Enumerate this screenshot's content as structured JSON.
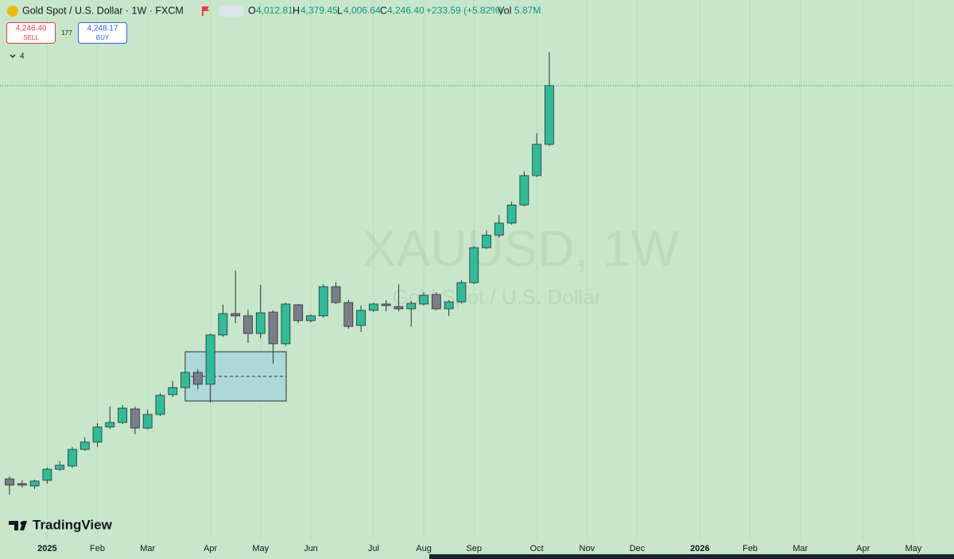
{
  "chart_data": {
    "type": "candlestick",
    "title": "Gold Spot / U.S. Dollar · 1W · FXCM",
    "ohlc": [
      {
        "key": "O",
        "value": "4,012.81"
      },
      {
        "key": "H",
        "value": "4,379.45"
      },
      {
        "key": "L",
        "value": "4,006.64"
      },
      {
        "key": "C",
        "value": "4,246.40"
      }
    ],
    "change": "+233.59 (+5.82%)",
    "volume": {
      "key": "Vol",
      "value": "5.87M"
    },
    "trade": {
      "sell": {
        "price": "4,246.40",
        "label": "SELL"
      },
      "spread": "177",
      "buy": {
        "price": "4,248.17",
        "label": "BUY"
      }
    },
    "indicators_count": "4",
    "watermark": [
      "XAUUSD, 1W",
      "Gold Spot / U.S. Dollar"
    ],
    "brand": "TradingView",
    "x": [
      0,
      1,
      2,
      3,
      4,
      5,
      6,
      7,
      8,
      9,
      10,
      11,
      12,
      13,
      14,
      15,
      16,
      17,
      18,
      19,
      20,
      21,
      22,
      23,
      24,
      25,
      26,
      27,
      28,
      29,
      30,
      31,
      32,
      33,
      34,
      35,
      36,
      37,
      38,
      39,
      40,
      41,
      42,
      43
    ],
    "open": [
      2683,
      2664,
      2655,
      2677,
      2721,
      2734,
      2800,
      2829,
      2889,
      2907,
      2961,
      2885,
      2939,
      3018,
      3046,
      3106,
      3059,
      3255,
      3340,
      3331,
      3261,
      3346,
      3220,
      3375,
      3312,
      3331,
      3447,
      3384,
      3293,
      3353,
      3378,
      3368,
      3359,
      3378,
      3416,
      3359,
      3387,
      3463,
      3602,
      3652,
      3700,
      3772,
      3889,
      4012.81
    ],
    "high": [
      2693,
      2677,
      2680,
      2728,
      2753,
      2810,
      2847,
      2904,
      2971,
      2977,
      2971,
      2958,
      3024,
      3072,
      3116,
      3119,
      3261,
      3375,
      3511,
      3356,
      3454,
      3353,
      3384,
      3378,
      3337,
      3457,
      3466,
      3394,
      3372,
      3384,
      3394,
      3457,
      3390,
      3425,
      3425,
      3394,
      3473,
      3608,
      3671,
      3732,
      3785,
      3905,
      4057,
      4379.45
    ],
    "low": [
      2620,
      2649,
      2642,
      2664,
      2715,
      2727,
      2794,
      2810,
      2882,
      2901,
      2860,
      2879,
      2933,
      3008,
      3037,
      3040,
      2986,
      3248,
      3302,
      3223,
      3242,
      3141,
      3211,
      3302,
      3305,
      3324,
      3378,
      3280,
      3267,
      3346,
      3349,
      3349,
      3289,
      3372,
      3353,
      3331,
      3381,
      3457,
      3596,
      3643,
      3694,
      3766,
      3883,
      4006.64
    ],
    "close": [
      2658,
      2658,
      2674,
      2721,
      2737,
      2800,
      2829,
      2889,
      2907,
      2964,
      2885,
      2939,
      3015,
      3046,
      3106,
      3059,
      3255,
      3340,
      3331,
      3261,
      3343,
      3220,
      3378,
      3312,
      3331,
      3447,
      3384,
      3289,
      3353,
      3378,
      3372,
      3359,
      3381,
      3413,
      3359,
      3387,
      3463,
      3602,
      3652,
      3700,
      3772,
      3889,
      4013,
      4246.4
    ],
    "up_color": "#2ebd98",
    "down_color": "#7b7d88",
    "xlim": [
      -0.76,
      75.24
    ],
    "ylim": [
      2440,
      4587
    ],
    "xticks": [
      {
        "value": 3,
        "label": "2025"
      },
      {
        "value": 7,
        "label": "Feb"
      },
      {
        "value": 11,
        "label": "Mar"
      },
      {
        "value": 16,
        "label": "Apr"
      },
      {
        "value": 20,
        "label": "May"
      },
      {
        "value": 24,
        "label": "Jun"
      },
      {
        "value": 29,
        "label": "Jul"
      },
      {
        "value": 33,
        "label": "Aug"
      },
      {
        "value": 37,
        "label": "Sep"
      },
      {
        "value": 42,
        "label": "Oct"
      },
      {
        "value": 46,
        "label": "Nov"
      },
      {
        "value": 50,
        "label": "Dec"
      },
      {
        "value": 55,
        "label": "2026"
      },
      {
        "value": 59,
        "label": "Feb"
      },
      {
        "value": 63,
        "label": "Mar"
      },
      {
        "value": 68,
        "label": "Apr"
      },
      {
        "value": 72,
        "label": "May"
      }
    ],
    "grid": true
  }
}
